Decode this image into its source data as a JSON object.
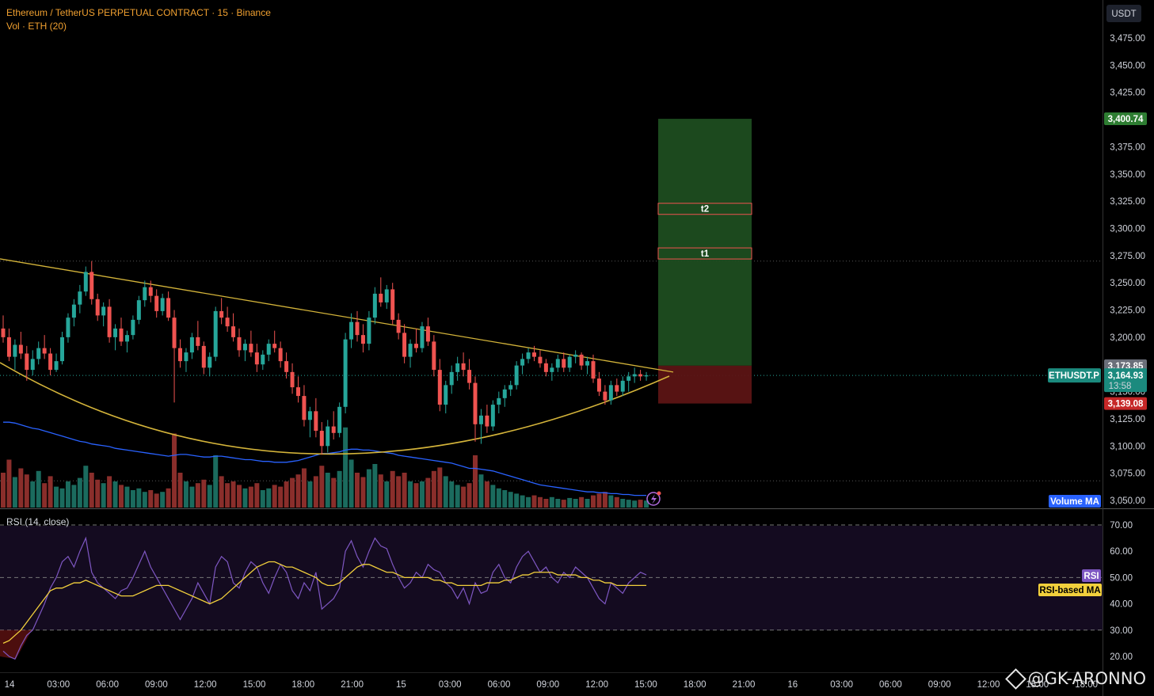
{
  "header": {
    "title": "Ethereum / TetherUS PERPETUAL CONTRACT · 15 · Binance",
    "volume_label": "Vol · ETH (20)"
  },
  "rsi_panel": {
    "label": "RSI (14, close)",
    "rsi_tag": "RSI",
    "ma_tag": "RSI-based MA"
  },
  "price_axis": {
    "currency": "USDT",
    "ticks": [
      "3,475.00",
      "3,450.00",
      "3,425.00",
      "3,400.00",
      "3,375.00",
      "3,350.00",
      "3,325.00",
      "3,300.00",
      "3,275.00",
      "3,250.00",
      "3,225.00",
      "3,200.00",
      "3,175.00",
      "3,150.00",
      "3,125.00",
      "3,100.00",
      "3,075.00",
      "3,050.00"
    ]
  },
  "rsi_axis": {
    "ticks": [
      "70.00",
      "60.00",
      "50.00",
      "40.00",
      "30.00",
      "20.00"
    ]
  },
  "time_axis": {
    "labels": [
      "14",
      "03:00",
      "06:00",
      "09:00",
      "12:00",
      "15:00",
      "18:00",
      "21:00",
      "15",
      "03:00",
      "06:00",
      "09:00",
      "12:00",
      "15:00",
      "18:00",
      "21:00",
      "16",
      "03:00",
      "06:00",
      "09:00",
      "12:00",
      "15:00",
      "18:00"
    ]
  },
  "tags": {
    "target": "3,400.74",
    "high_ref": "3,173.85",
    "symbol": "ETHUSDT.P",
    "last_price": "3,164.93",
    "countdown": "13:58",
    "stop": "3,139.08",
    "volume_ma": "Volume MA"
  },
  "position": {
    "t1_label": "t1",
    "t2_label": "t2"
  },
  "watermark": "@GK-ARONNO",
  "colors": {
    "up": "#26a69a",
    "down": "#ef5350",
    "trend": "#d4b43a",
    "rsi": "#7e57c2",
    "rsi_ma": "#f2d03c",
    "vol_ma": "#2962ff",
    "target_zone": "#1e4d20",
    "stop_zone": "#5c1414"
  },
  "chart_data": {
    "type": "candlestick",
    "symbol": "ETHUSDT.P",
    "interval": "15",
    "price_ylim": [
      3050,
      3480
    ],
    "rsi_ylim": [
      17,
      73
    ],
    "rsi_levels": [
      70,
      50,
      30
    ],
    "last_price": 3164.93,
    "position_long": {
      "entry": 3164.93,
      "stop": 3139.08,
      "target": 3400.74,
      "t1": 3277,
      "t2": 3318,
      "top_ref": 3173.85
    },
    "trendline_prices": [
      3272,
      3168
    ],
    "candles": [
      [
        3208,
        3220,
        3195,
        3200
      ],
      [
        3200,
        3208,
        3178,
        3182
      ],
      [
        3182,
        3198,
        3170,
        3193
      ],
      [
        3193,
        3205,
        3180,
        3185
      ],
      [
        3185,
        3192,
        3160,
        3170
      ],
      [
        3170,
        3188,
        3165,
        3180
      ],
      [
        3180,
        3196,
        3175,
        3190
      ],
      [
        3190,
        3202,
        3180,
        3185
      ],
      [
        3185,
        3190,
        3165,
        3170
      ],
      [
        3170,
        3185,
        3168,
        3178
      ],
      [
        3178,
        3205,
        3175,
        3200
      ],
      [
        3200,
        3222,
        3195,
        3218
      ],
      [
        3218,
        3235,
        3210,
        3230
      ],
      [
        3230,
        3248,
        3222,
        3242
      ],
      [
        3242,
        3265,
        3238,
        3260
      ],
      [
        3260,
        3270,
        3230,
        3235
      ],
      [
        3235,
        3240,
        3215,
        3220
      ],
      [
        3220,
        3232,
        3210,
        3228
      ],
      [
        3228,
        3235,
        3195,
        3200
      ],
      [
        3200,
        3212,
        3188,
        3208
      ],
      [
        3208,
        3218,
        3192,
        3196
      ],
      [
        3196,
        3206,
        3186,
        3202
      ],
      [
        3202,
        3220,
        3198,
        3216
      ],
      [
        3216,
        3238,
        3212,
        3234
      ],
      [
        3234,
        3252,
        3228,
        3246
      ],
      [
        3246,
        3252,
        3232,
        3238
      ],
      [
        3238,
        3244,
        3218,
        3224
      ],
      [
        3224,
        3240,
        3220,
        3236
      ],
      [
        3236,
        3242,
        3215,
        3218
      ],
      [
        3218,
        3225,
        3140,
        3190
      ],
      [
        3190,
        3198,
        3172,
        3178
      ],
      [
        3178,
        3190,
        3168,
        3186
      ],
      [
        3186,
        3204,
        3180,
        3200
      ],
      [
        3200,
        3215,
        3188,
        3192
      ],
      [
        3192,
        3196,
        3166,
        3172
      ],
      [
        3172,
        3186,
        3164,
        3182
      ],
      [
        3182,
        3228,
        3178,
        3224
      ],
      [
        3224,
        3236,
        3212,
        3218
      ],
      [
        3218,
        3228,
        3205,
        3210
      ],
      [
        3210,
        3222,
        3196,
        3200
      ],
      [
        3200,
        3208,
        3182,
        3188
      ],
      [
        3188,
        3198,
        3178,
        3194
      ],
      [
        3194,
        3206,
        3182,
        3186
      ],
      [
        3186,
        3194,
        3168,
        3175
      ],
      [
        3175,
        3188,
        3170,
        3184
      ],
      [
        3184,
        3198,
        3178,
        3194
      ],
      [
        3194,
        3206,
        3186,
        3190
      ],
      [
        3190,
        3196,
        3172,
        3178
      ],
      [
        3178,
        3186,
        3162,
        3168
      ],
      [
        3168,
        3176,
        3148,
        3154
      ],
      [
        3154,
        3164,
        3140,
        3146
      ],
      [
        3146,
        3156,
        3118,
        3124
      ],
      [
        3124,
        3136,
        3108,
        3132
      ],
      [
        3132,
        3144,
        3108,
        3114
      ],
      [
        3114,
        3122,
        3092,
        3100
      ],
      [
        3100,
        3124,
        3094,
        3118
      ],
      [
        3118,
        3132,
        3106,
        3112
      ],
      [
        3112,
        3140,
        3108,
        3136
      ],
      [
        3136,
        3204,
        3130,
        3198
      ],
      [
        3198,
        3222,
        3190,
        3214
      ],
      [
        3214,
        3224,
        3196,
        3202
      ],
      [
        3202,
        3212,
        3186,
        3194
      ],
      [
        3194,
        3224,
        3188,
        3218
      ],
      [
        3218,
        3246,
        3212,
        3240
      ],
      [
        3240,
        3255,
        3228,
        3232
      ],
      [
        3232,
        3248,
        3226,
        3244
      ],
      [
        3244,
        3250,
        3212,
        3216
      ],
      [
        3216,
        3222,
        3198,
        3204
      ],
      [
        3204,
        3212,
        3176,
        3182
      ],
      [
        3182,
        3198,
        3172,
        3194
      ],
      [
        3194,
        3208,
        3186,
        3190
      ],
      [
        3190,
        3214,
        3186,
        3210
      ],
      [
        3210,
        3218,
        3192,
        3196
      ],
      [
        3196,
        3202,
        3164,
        3170
      ],
      [
        3170,
        3180,
        3132,
        3138
      ],
      [
        3138,
        3160,
        3130,
        3156
      ],
      [
        3156,
        3174,
        3148,
        3168
      ],
      [
        3168,
        3182,
        3160,
        3176
      ],
      [
        3176,
        3186,
        3164,
        3170
      ],
      [
        3170,
        3180,
        3152,
        3158
      ],
      [
        3158,
        3164,
        3104,
        3120
      ],
      [
        3120,
        3134,
        3102,
        3128
      ],
      [
        3128,
        3138,
        3112,
        3118
      ],
      [
        3118,
        3142,
        3114,
        3138
      ],
      [
        3138,
        3150,
        3130,
        3144
      ],
      [
        3144,
        3156,
        3136,
        3152
      ],
      [
        3152,
        3160,
        3146,
        3156
      ],
      [
        3156,
        3178,
        3152,
        3174
      ],
      [
        3174,
        3185,
        3166,
        3180
      ],
      [
        3180,
        3190,
        3176,
        3186
      ],
      [
        3186,
        3192,
        3178,
        3182
      ],
      [
        3182,
        3188,
        3172,
        3176
      ],
      [
        3176,
        3180,
        3164,
        3168
      ],
      [
        3168,
        3176,
        3160,
        3172
      ],
      [
        3172,
        3184,
        3168,
        3180
      ],
      [
        3180,
        3186,
        3168,
        3172
      ],
      [
        3172,
        3184,
        3168,
        3182
      ],
      [
        3182,
        3188,
        3176,
        3184
      ],
      [
        3184,
        3186,
        3170,
        3174
      ],
      [
        3174,
        3182,
        3166,
        3178
      ],
      [
        3178,
        3184,
        3158,
        3162
      ],
      [
        3162,
        3168,
        3146,
        3150
      ],
      [
        3150,
        3156,
        3138,
        3142
      ],
      [
        3142,
        3160,
        3138,
        3156
      ],
      [
        3156,
        3162,
        3146,
        3150
      ],
      [
        3150,
        3164,
        3146,
        3160
      ],
      [
        3160,
        3168,
        3150,
        3164
      ],
      [
        3164,
        3172,
        3158,
        3166
      ],
      [
        3166,
        3170,
        3160,
        3164
      ],
      [
        3164,
        3168,
        3160,
        3165
      ]
    ],
    "volume": [
      40,
      55,
      35,
      45,
      38,
      30,
      42,
      28,
      36,
      24,
      22,
      30,
      26,
      34,
      48,
      40,
      32,
      28,
      36,
      30,
      26,
      24,
      20,
      22,
      18,
      20,
      16,
      18,
      22,
      85,
      40,
      30,
      24,
      28,
      32,
      26,
      60,
      36,
      28,
      30,
      26,
      22,
      24,
      28,
      20,
      22,
      26,
      24,
      30,
      34,
      38,
      45,
      30,
      36,
      48,
      40,
      34,
      42,
      92,
      55,
      40,
      35,
      44,
      50,
      38,
      30,
      42,
      36,
      40,
      30,
      28,
      30,
      34,
      42,
      46,
      36,
      30,
      26,
      24,
      28,
      60,
      38,
      30,
      26,
      22,
      20,
      18,
      16,
      14,
      12,
      14,
      12,
      10,
      12,
      10,
      9,
      11,
      10,
      12,
      10,
      14,
      16,
      18,
      14,
      12,
      10,
      9,
      8,
      9,
      8
    ],
    "volume_ma": [
      98,
      98,
      97,
      95,
      93,
      91,
      90,
      88,
      86,
      84,
      82,
      80,
      78,
      76,
      75,
      73,
      72,
      71,
      70,
      68,
      67,
      66,
      65,
      64,
      63,
      62,
      61,
      60,
      59,
      60,
      61,
      61,
      60,
      59,
      58,
      58,
      59,
      59,
      58,
      57,
      56,
      55,
      55,
      54,
      53,
      53,
      52,
      52,
      52,
      53,
      54,
      56,
      58,
      60,
      62,
      62,
      63,
      64,
      66,
      67,
      67,
      66,
      66,
      65,
      64,
      63,
      62,
      60,
      59,
      58,
      57,
      56,
      55,
      54,
      53,
      52,
      51,
      49,
      47,
      45,
      45,
      44,
      43,
      42,
      40,
      38,
      36,
      34,
      32,
      30,
      28,
      26,
      25,
      24,
      23,
      22,
      21,
      20,
      19,
      18,
      18,
      17,
      17,
      16,
      16,
      15,
      15,
      14,
      14,
      14
    ],
    "rsi": [
      22,
      20,
      19,
      24,
      28,
      30,
      35,
      40,
      46,
      50,
      56,
      58,
      54,
      60,
      65,
      52,
      48,
      46,
      44,
      42,
      45,
      46,
      50,
      55,
      60,
      54,
      50,
      46,
      42,
      38,
      34,
      38,
      42,
      48,
      44,
      40,
      54,
      58,
      56,
      48,
      46,
      52,
      56,
      54,
      48,
      44,
      50,
      55,
      52,
      45,
      42,
      48,
      45,
      52,
      38,
      40,
      42,
      46,
      60,
      64,
      58,
      54,
      60,
      65,
      62,
      61,
      55,
      50,
      46,
      48,
      52,
      50,
      55,
      53,
      52,
      48,
      46,
      42,
      46,
      40,
      48,
      44,
      45,
      52,
      55,
      50,
      48,
      54,
      58,
      60,
      56,
      52,
      54,
      50,
      48,
      52,
      50,
      54,
      52,
      50,
      46,
      42,
      40,
      48,
      46,
      44,
      48,
      50,
      52,
      51
    ],
    "rsi_ma": [
      25,
      26,
      28,
      30,
      33,
      36,
      39,
      42,
      45,
      46,
      46,
      47,
      48,
      48,
      49,
      48,
      47,
      46,
      45,
      44,
      43,
      43,
      43,
      44,
      45,
      46,
      47,
      47,
      47,
      46,
      45,
      44,
      43,
      42,
      41,
      40,
      41,
      42,
      44,
      46,
      48,
      50,
      52,
      54,
      55,
      56,
      56,
      55,
      54,
      54,
      53,
      52,
      51,
      50,
      48,
      47,
      47,
      48,
      50,
      52,
      54,
      55,
      55,
      54,
      53,
      52,
      52,
      51,
      50,
      50,
      50,
      50,
      50,
      49,
      49,
      48,
      48,
      47,
      47,
      47,
      47,
      47,
      48,
      48,
      48,
      49,
      49,
      50,
      51,
      51,
      52,
      52,
      52,
      52,
      51,
      51,
      51,
      51,
      50,
      50,
      49,
      49,
      48,
      48,
      47,
      47,
      47,
      47,
      47,
      47
    ]
  }
}
